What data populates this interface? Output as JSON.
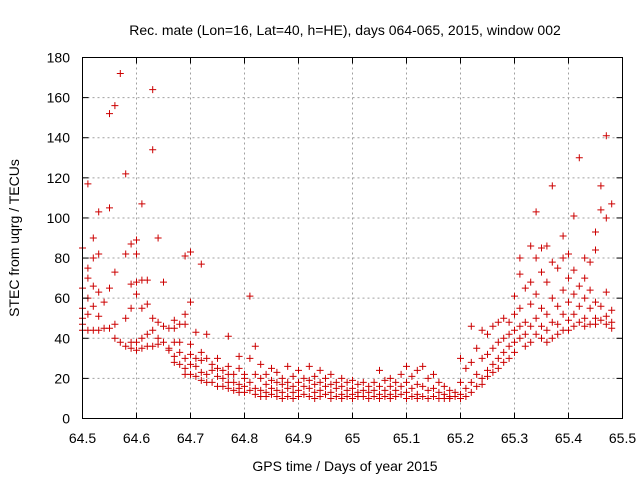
{
  "chart_data": {
    "type": "scatter",
    "title": "Rec. mate (Lon=16, Lat=40, h=HE), days 064-065, 2015, window 002",
    "xlabel": "GPS time / Days of year 2015",
    "ylabel": "STEC from uqrg / TECUs",
    "xlim": [
      64.5,
      65.5
    ],
    "ylim": [
      0,
      180
    ],
    "xticks": [
      "64.5",
      "64.6",
      "64.7",
      "64.8",
      "64.9",
      "65",
      "65.1",
      "65.2",
      "65.3",
      "65.4",
      "65.5"
    ],
    "yticks": [
      "0",
      "20",
      "40",
      "60",
      "80",
      "100",
      "120",
      "140",
      "160",
      "180"
    ],
    "grid": true,
    "marker": "+",
    "color": "#cc0000",
    "points": [
      [
        64.5,
        85
      ],
      [
        64.5,
        65
      ],
      [
        64.5,
        55
      ],
      [
        64.5,
        50
      ],
      [
        64.5,
        47
      ],
      [
        64.5,
        44
      ],
      [
        64.51,
        117
      ],
      [
        64.51,
        75
      ],
      [
        64.51,
        70
      ],
      [
        64.51,
        60
      ],
      [
        64.51,
        52
      ],
      [
        64.51,
        44
      ],
      [
        64.52,
        90
      ],
      [
        64.52,
        80
      ],
      [
        64.52,
        66
      ],
      [
        64.52,
        56
      ],
      [
        64.52,
        44
      ],
      [
        64.53,
        103
      ],
      [
        64.53,
        82
      ],
      [
        64.53,
        63
      ],
      [
        64.53,
        51
      ],
      [
        64.53,
        44
      ],
      [
        64.54,
        58
      ],
      [
        64.54,
        45
      ],
      [
        64.55,
        152
      ],
      [
        64.55,
        105
      ],
      [
        64.55,
        65
      ],
      [
        64.55,
        45
      ],
      [
        64.56,
        156
      ],
      [
        64.56,
        73
      ],
      [
        64.56,
        47
      ],
      [
        64.56,
        40
      ],
      [
        64.57,
        172
      ],
      [
        64.57,
        38
      ],
      [
        64.58,
        122
      ],
      [
        64.58,
        82
      ],
      [
        64.58,
        50
      ],
      [
        64.58,
        36
      ],
      [
        64.59,
        87
      ],
      [
        64.59,
        67
      ],
      [
        64.59,
        55
      ],
      [
        64.59,
        38
      ],
      [
        64.59,
        35
      ],
      [
        64.6,
        89
      ],
      [
        64.6,
        82
      ],
      [
        64.6,
        68
      ],
      [
        64.6,
        62
      ],
      [
        64.6,
        38
      ],
      [
        64.6,
        34
      ],
      [
        64.61,
        107
      ],
      [
        64.61,
        69
      ],
      [
        64.61,
        55
      ],
      [
        64.61,
        40
      ],
      [
        64.61,
        35
      ],
      [
        64.62,
        69
      ],
      [
        64.62,
        57
      ],
      [
        64.62,
        42
      ],
      [
        64.62,
        36
      ],
      [
        64.63,
        164
      ],
      [
        64.63,
        134
      ],
      [
        64.63,
        50
      ],
      [
        64.63,
        44
      ],
      [
        64.63,
        36
      ],
      [
        64.64,
        90
      ],
      [
        64.64,
        48
      ],
      [
        64.64,
        40
      ],
      [
        64.64,
        37
      ],
      [
        64.65,
        68
      ],
      [
        64.65,
        46
      ],
      [
        64.65,
        38
      ],
      [
        64.66,
        45
      ],
      [
        64.66,
        35
      ],
      [
        64.66,
        34
      ],
      [
        64.67,
        49
      ],
      [
        64.67,
        45
      ],
      [
        64.67,
        38
      ],
      [
        64.67,
        31
      ],
      [
        64.67,
        28
      ],
      [
        64.68,
        47
      ],
      [
        64.68,
        38
      ],
      [
        64.68,
        33
      ],
      [
        64.68,
        27
      ],
      [
        64.69,
        81
      ],
      [
        64.69,
        52
      ],
      [
        64.69,
        47
      ],
      [
        64.69,
        30
      ],
      [
        64.69,
        25
      ],
      [
        64.69,
        22
      ],
      [
        64.7,
        83
      ],
      [
        64.7,
        58
      ],
      [
        64.7,
        37
      ],
      [
        64.7,
        32
      ],
      [
        64.7,
        27
      ],
      [
        64.7,
        22
      ],
      [
        64.71,
        43
      ],
      [
        64.71,
        30
      ],
      [
        64.71,
        26
      ],
      [
        64.71,
        21
      ],
      [
        64.72,
        77
      ],
      [
        64.72,
        33
      ],
      [
        64.72,
        29
      ],
      [
        64.72,
        23
      ],
      [
        64.72,
        19
      ],
      [
        64.73,
        42
      ],
      [
        64.73,
        30
      ],
      [
        64.73,
        22
      ],
      [
        64.73,
        18
      ],
      [
        64.74,
        27
      ],
      [
        64.74,
        24
      ],
      [
        64.74,
        18
      ],
      [
        64.75,
        30
      ],
      [
        64.75,
        25
      ],
      [
        64.75,
        21
      ],
      [
        64.75,
        16
      ],
      [
        64.76,
        24
      ],
      [
        64.76,
        20
      ],
      [
        64.76,
        16
      ],
      [
        64.77,
        41
      ],
      [
        64.77,
        26
      ],
      [
        64.77,
        22
      ],
      [
        64.77,
        18
      ],
      [
        64.77,
        15
      ],
      [
        64.78,
        22
      ],
      [
        64.78,
        18
      ],
      [
        64.78,
        14
      ],
      [
        64.79,
        31
      ],
      [
        64.79,
        25
      ],
      [
        64.79,
        17
      ],
      [
        64.79,
        15
      ],
      [
        64.79,
        13
      ],
      [
        64.8,
        22
      ],
      [
        64.8,
        20
      ],
      [
        64.8,
        16
      ],
      [
        64.8,
        13
      ],
      [
        64.81,
        61
      ],
      [
        64.81,
        30
      ],
      [
        64.81,
        18
      ],
      [
        64.81,
        14
      ],
      [
        64.82,
        36
      ],
      [
        64.82,
        22
      ],
      [
        64.82,
        15
      ],
      [
        64.82,
        12
      ],
      [
        64.83,
        27
      ],
      [
        64.83,
        20
      ],
      [
        64.83,
        14
      ],
      [
        64.83,
        11
      ],
      [
        64.84,
        22
      ],
      [
        64.84,
        17
      ],
      [
        64.84,
        13
      ],
      [
        64.84,
        11
      ],
      [
        64.85,
        25
      ],
      [
        64.85,
        19
      ],
      [
        64.85,
        15
      ],
      [
        64.85,
        12
      ],
      [
        64.86,
        23
      ],
      [
        64.86,
        18
      ],
      [
        64.86,
        14
      ],
      [
        64.86,
        11
      ],
      [
        64.87,
        20
      ],
      [
        64.87,
        17
      ],
      [
        64.87,
        13
      ],
      [
        64.87,
        10
      ],
      [
        64.88,
        26
      ],
      [
        64.88,
        18
      ],
      [
        64.88,
        15
      ],
      [
        64.88,
        11
      ],
      [
        64.89,
        21
      ],
      [
        64.89,
        16
      ],
      [
        64.89,
        13
      ],
      [
        64.89,
        10
      ],
      [
        64.9,
        24
      ],
      [
        64.9,
        18
      ],
      [
        64.9,
        14
      ],
      [
        64.9,
        11
      ],
      [
        64.91,
        20
      ],
      [
        64.91,
        16
      ],
      [
        64.91,
        12
      ],
      [
        64.92,
        26
      ],
      [
        64.92,
        19
      ],
      [
        64.92,
        15
      ],
      [
        64.92,
        11
      ],
      [
        64.93,
        21
      ],
      [
        64.93,
        17
      ],
      [
        64.93,
        13
      ],
      [
        64.93,
        10
      ],
      [
        64.94,
        24
      ],
      [
        64.94,
        18
      ],
      [
        64.94,
        14
      ],
      [
        64.94,
        11
      ],
      [
        64.95,
        20
      ],
      [
        64.95,
        16
      ],
      [
        64.95,
        12
      ],
      [
        64.96,
        22
      ],
      [
        64.96,
        17
      ],
      [
        64.96,
        13
      ],
      [
        64.96,
        10
      ],
      [
        64.97,
        18
      ],
      [
        64.97,
        15
      ],
      [
        64.97,
        11
      ],
      [
        64.98,
        20
      ],
      [
        64.98,
        16
      ],
      [
        64.98,
        12
      ],
      [
        64.98,
        10
      ],
      [
        64.99,
        18
      ],
      [
        64.99,
        14
      ],
      [
        64.99,
        11
      ],
      [
        65.0,
        19
      ],
      [
        65.0,
        15
      ],
      [
        65.0,
        12
      ],
      [
        65.0,
        10
      ],
      [
        65.01,
        17
      ],
      [
        65.01,
        13
      ],
      [
        65.01,
        11
      ],
      [
        65.02,
        18
      ],
      [
        65.02,
        14
      ],
      [
        65.02,
        11
      ],
      [
        65.03,
        16
      ],
      [
        65.03,
        13
      ],
      [
        65.03,
        10
      ],
      [
        65.04,
        18
      ],
      [
        65.04,
        14
      ],
      [
        65.04,
        11
      ],
      [
        65.05,
        24
      ],
      [
        65.05,
        16
      ],
      [
        65.05,
        12
      ],
      [
        65.05,
        10
      ],
      [
        65.06,
        19
      ],
      [
        65.06,
        14
      ],
      [
        65.06,
        11
      ],
      [
        65.07,
        20
      ],
      [
        65.07,
        16
      ],
      [
        65.07,
        12
      ],
      [
        65.07,
        10
      ],
      [
        65.08,
        18
      ],
      [
        65.08,
        14
      ],
      [
        65.08,
        11
      ],
      [
        65.09,
        22
      ],
      [
        65.09,
        16
      ],
      [
        65.09,
        12
      ],
      [
        65.1,
        26
      ],
      [
        65.1,
        18
      ],
      [
        65.1,
        13
      ],
      [
        65.1,
        10
      ],
      [
        65.11,
        21
      ],
      [
        65.11,
        15
      ],
      [
        65.11,
        11
      ],
      [
        65.12,
        24
      ],
      [
        65.12,
        17
      ],
      [
        65.12,
        12
      ],
      [
        65.12,
        10
      ],
      [
        65.13,
        26
      ],
      [
        65.13,
        16
      ],
      [
        65.13,
        11
      ],
      [
        65.14,
        20
      ],
      [
        65.14,
        14
      ],
      [
        65.14,
        10
      ],
      [
        65.15,
        22
      ],
      [
        65.15,
        15
      ],
      [
        65.15,
        11
      ],
      [
        65.16,
        18
      ],
      [
        65.16,
        13
      ],
      [
        65.16,
        10
      ],
      [
        65.17,
        16
      ],
      [
        65.17,
        12
      ],
      [
        65.17,
        10
      ],
      [
        65.18,
        14
      ],
      [
        65.18,
        11
      ],
      [
        65.18,
        10
      ],
      [
        65.19,
        13
      ],
      [
        65.19,
        11
      ],
      [
        65.2,
        30
      ],
      [
        65.2,
        18
      ],
      [
        65.2,
        12
      ],
      [
        65.2,
        10
      ],
      [
        65.21,
        25
      ],
      [
        65.21,
        15
      ],
      [
        65.21,
        11
      ],
      [
        65.22,
        46
      ],
      [
        65.22,
        28
      ],
      [
        65.22,
        18
      ],
      [
        65.22,
        13
      ],
      [
        65.23,
        35
      ],
      [
        65.23,
        22
      ],
      [
        65.23,
        16
      ],
      [
        65.24,
        44
      ],
      [
        65.24,
        30
      ],
      [
        65.24,
        20
      ],
      [
        65.24,
        17
      ],
      [
        65.25,
        42
      ],
      [
        65.25,
        32
      ],
      [
        65.25,
        24
      ],
      [
        65.25,
        21
      ],
      [
        65.26,
        46
      ],
      [
        65.26,
        35
      ],
      [
        65.26,
        27
      ],
      [
        65.26,
        23
      ],
      [
        65.27,
        48
      ],
      [
        65.27,
        38
      ],
      [
        65.27,
        30
      ],
      [
        65.27,
        25
      ],
      [
        65.28,
        50
      ],
      [
        65.28,
        40
      ],
      [
        65.28,
        33
      ],
      [
        65.28,
        28
      ],
      [
        65.29,
        48
      ],
      [
        65.29,
        42
      ],
      [
        65.29,
        36
      ],
      [
        65.29,
        30
      ],
      [
        65.3,
        61
      ],
      [
        65.3,
        52
      ],
      [
        65.3,
        44
      ],
      [
        65.3,
        38
      ],
      [
        65.3,
        33
      ],
      [
        65.31,
        80
      ],
      [
        65.31,
        72
      ],
      [
        65.31,
        55
      ],
      [
        65.31,
        46
      ],
      [
        65.31,
        40
      ],
      [
        65.32,
        65
      ],
      [
        65.32,
        48
      ],
      [
        65.32,
        42
      ],
      [
        65.32,
        36
      ],
      [
        65.33,
        86
      ],
      [
        65.33,
        68
      ],
      [
        65.33,
        57
      ],
      [
        65.33,
        46
      ],
      [
        65.33,
        38
      ],
      [
        65.34,
        103
      ],
      [
        65.34,
        80
      ],
      [
        65.34,
        62
      ],
      [
        65.34,
        50
      ],
      [
        65.34,
        42
      ],
      [
        65.35,
        85
      ],
      [
        65.35,
        73
      ],
      [
        65.35,
        55
      ],
      [
        65.35,
        46
      ],
      [
        65.35,
        40
      ],
      [
        65.36,
        86
      ],
      [
        65.36,
        68
      ],
      [
        65.36,
        52
      ],
      [
        65.36,
        44
      ],
      [
        65.36,
        38
      ],
      [
        65.37,
        116
      ],
      [
        65.37,
        78
      ],
      [
        65.37,
        60
      ],
      [
        65.37,
        48
      ],
      [
        65.37,
        40
      ],
      [
        65.38,
        75
      ],
      [
        65.38,
        56
      ],
      [
        65.38,
        47
      ],
      [
        65.38,
        42
      ],
      [
        65.39,
        91
      ],
      [
        65.39,
        80
      ],
      [
        65.39,
        64
      ],
      [
        65.39,
        52
      ],
      [
        65.39,
        44
      ],
      [
        65.4,
        82
      ],
      [
        65.4,
        70
      ],
      [
        65.4,
        58
      ],
      [
        65.4,
        49
      ],
      [
        65.4,
        44
      ],
      [
        65.41,
        101
      ],
      [
        65.41,
        74
      ],
      [
        65.41,
        62
      ],
      [
        65.41,
        52
      ],
      [
        65.41,
        46
      ],
      [
        65.42,
        130
      ],
      [
        65.42,
        66
      ],
      [
        65.42,
        56
      ],
      [
        65.42,
        48
      ],
      [
        65.43,
        80
      ],
      [
        65.43,
        70
      ],
      [
        65.43,
        60
      ],
      [
        65.43,
        50
      ],
      [
        65.43,
        46
      ],
      [
        65.44,
        78
      ],
      [
        65.44,
        64
      ],
      [
        65.44,
        55
      ],
      [
        65.44,
        47
      ],
      [
        65.45,
        93
      ],
      [
        65.45,
        84
      ],
      [
        65.45,
        58
      ],
      [
        65.45,
        50
      ],
      [
        65.45,
        47
      ],
      [
        65.46,
        116
      ],
      [
        65.46,
        104
      ],
      [
        65.46,
        56
      ],
      [
        65.46,
        49
      ],
      [
        65.47,
        141
      ],
      [
        65.47,
        100
      ],
      [
        65.47,
        63
      ],
      [
        65.47,
        51
      ],
      [
        65.47,
        47
      ],
      [
        65.48,
        107
      ],
      [
        65.48,
        54
      ],
      [
        65.48,
        48
      ],
      [
        65.48,
        45
      ]
    ]
  }
}
